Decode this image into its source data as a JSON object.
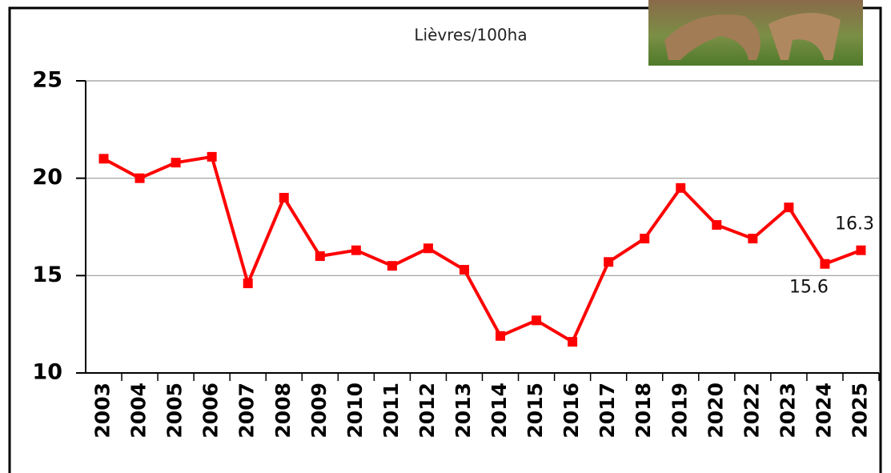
{
  "chart_data": {
    "type": "line",
    "title": "Lièvres/100ha",
    "categories": [
      "2003",
      "2004",
      "2005",
      "2006",
      "2007",
      "2008",
      "2009",
      "2010",
      "2011",
      "2012",
      "2013",
      "2014",
      "2015",
      "2016",
      "2017",
      "2018",
      "2019",
      "2020",
      "2022",
      "2023",
      "2024",
      "2025"
    ],
    "series": [
      {
        "name": "Lièvres/100ha",
        "color": "#ff0000",
        "values": [
          21,
          20,
          20.8,
          21.1,
          14.6,
          19,
          16,
          16.3,
          15.5,
          16.4,
          15.3,
          11.9,
          12.7,
          11.6,
          15.7,
          16.9,
          19.5,
          17.6,
          16.9,
          18.5,
          15.6,
          16.3
        ],
        "value_labels": [
          null,
          null,
          null,
          null,
          null,
          null,
          null,
          null,
          null,
          null,
          null,
          null,
          null,
          null,
          null,
          null,
          null,
          null,
          null,
          null,
          "15.6",
          "16.3"
        ]
      }
    ],
    "ylim": [
      10,
      25
    ],
    "yticks": [
      10,
      15,
      20,
      25
    ],
    "grid": true
  }
}
